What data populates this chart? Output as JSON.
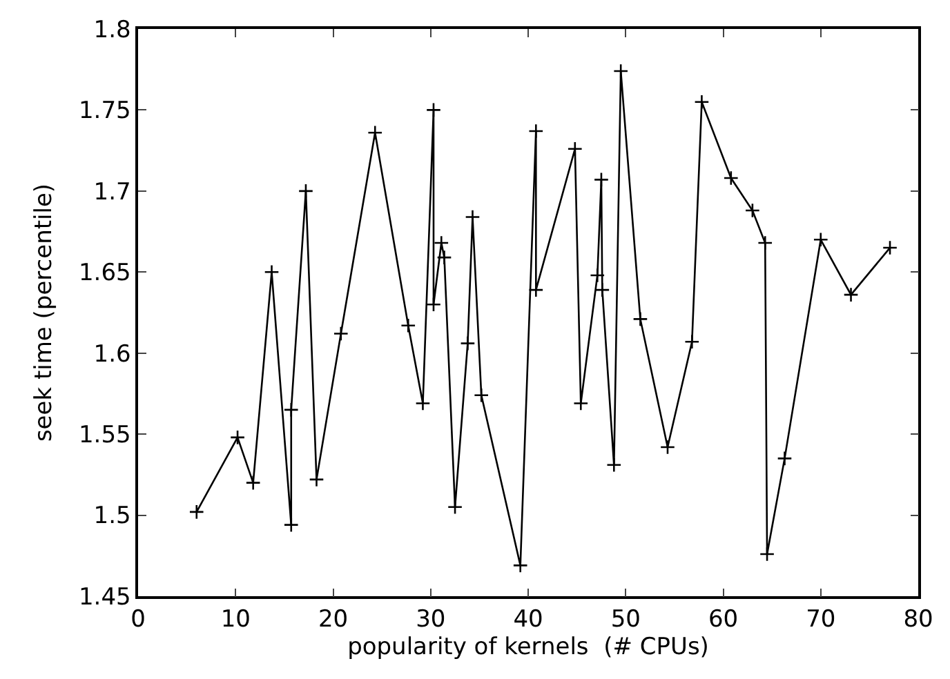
{
  "chart_data": {
    "type": "line",
    "xlabel": "popularity of kernels  (# CPUs)",
    "ylabel": "seek time (percentile)",
    "x": [
      6,
      10.2,
      11.8,
      13.7,
      15.7,
      15.7,
      17.2,
      18.3,
      20.8,
      24.3,
      27.7,
      29.2,
      30.3,
      30.3,
      31.1,
      31.4,
      32.5,
      33.8,
      34.3,
      35.2,
      39.2,
      40.8,
      40.8,
      44.8,
      45.4,
      47.1,
      47.5,
      47.6,
      48.8,
      49.5,
      51.5,
      54.3,
      56.8,
      57.8,
      60.8,
      63,
      64.3,
      64.5,
      66.3,
      70,
      73.1,
      77.1
    ],
    "series": [
      {
        "color": "#000000",
        "values": [
          1.502,
          1.548,
          1.52,
          1.65,
          1.494,
          1.565,
          1.7,
          1.522,
          1.612,
          1.736,
          1.617,
          1.569,
          1.75,
          1.63,
          1.668,
          1.659,
          1.505,
          1.606,
          1.684,
          1.574,
          1.469,
          1.737,
          1.639,
          1.726,
          1.569,
          1.648,
          1.707,
          1.639,
          1.531,
          1.774,
          1.621,
          1.542,
          1.607,
          1.755,
          1.708,
          1.688,
          1.668,
          1.476,
          1.535,
          1.67,
          1.636,
          1.665
        ]
      }
    ],
    "xlim": [
      0,
      80
    ],
    "ylim": [
      1.45,
      1.8
    ],
    "xticks": [
      0,
      10,
      20,
      30,
      40,
      50,
      60,
      70,
      80
    ],
    "yticks": [
      1.45,
      1.5,
      1.55,
      1.6,
      1.65,
      1.7,
      1.75,
      1.8
    ],
    "marker": "cross",
    "line_style": "solid",
    "grid": false,
    "legend": false
  }
}
